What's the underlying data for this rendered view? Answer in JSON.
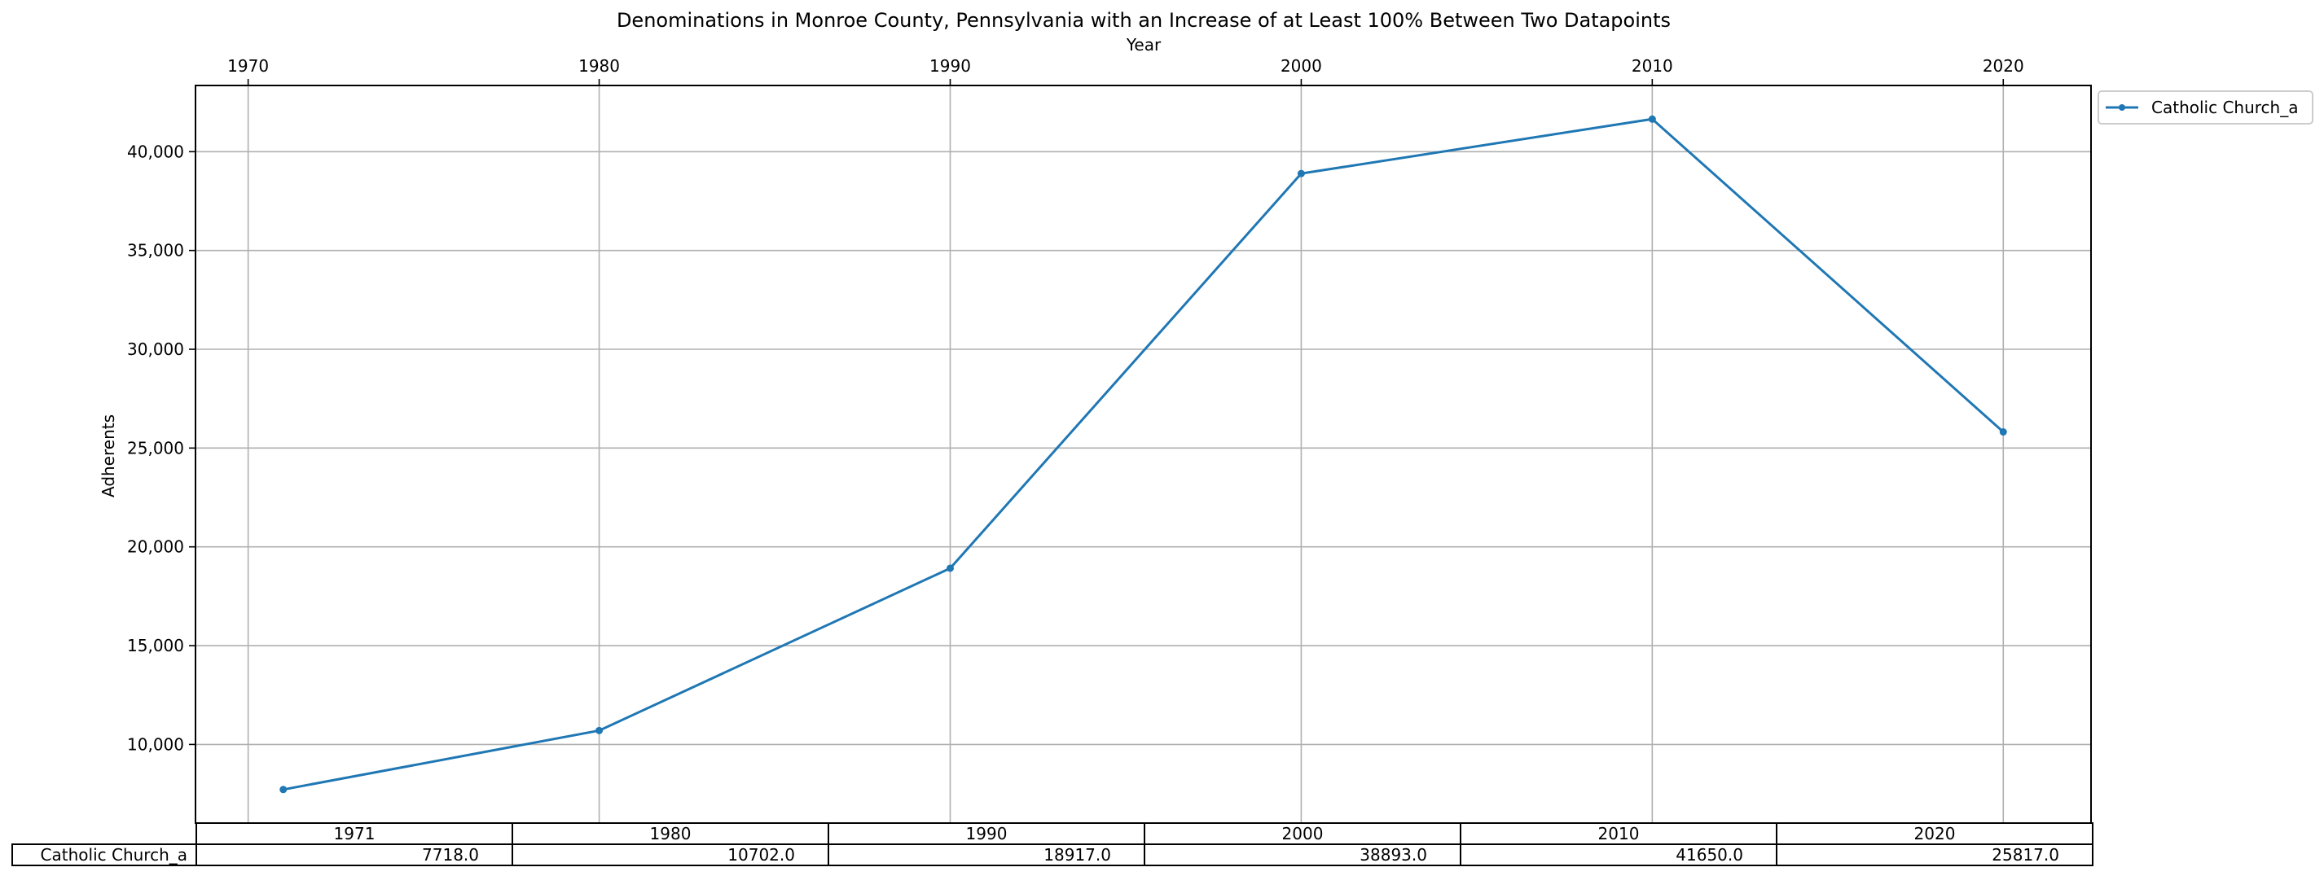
{
  "chart_data": {
    "type": "line",
    "title": "Denominations in Monroe County, Pennsylvania with an Increase of at Least 100% Between Two Datapoints",
    "xlabel": "Year",
    "ylabel": "Adherents",
    "x": [
      1971,
      1980,
      1990,
      2000,
      2010,
      2020
    ],
    "x_ticks": [
      1970,
      1980,
      1990,
      2000,
      2010,
      2020
    ],
    "y_ticks": [
      10000,
      15000,
      20000,
      25000,
      30000,
      35000,
      40000
    ],
    "y_tick_labels": [
      "10,000",
      "15,000",
      "20,000",
      "25,000",
      "30,000",
      "35,000",
      "40,000"
    ],
    "xlim": [
      1968.5,
      2022.5
    ],
    "ylim": [
      6020,
      43350
    ],
    "grid": true,
    "legend_position": "outside-top-right",
    "series": [
      {
        "name": "Catholic Church_a",
        "color": "#1f77b4",
        "values": [
          7718,
          10702,
          18917,
          38893,
          41650,
          25817
        ]
      }
    ]
  },
  "table": {
    "columns": [
      "1971",
      "1980",
      "1990",
      "2000",
      "2010",
      "2020"
    ],
    "rows": [
      {
        "label": "Catholic Church_a",
        "cells": [
          "7718.0",
          "10702.0",
          "18917.0",
          "38893.0",
          "41650.0",
          "25817.0"
        ]
      }
    ]
  }
}
